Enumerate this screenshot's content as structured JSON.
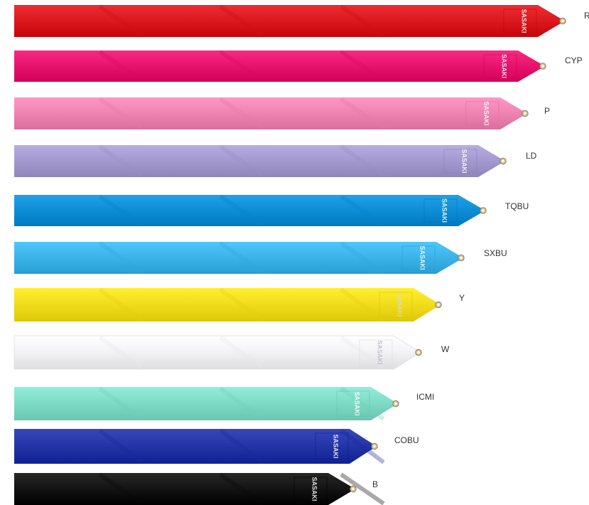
{
  "ribbons": [
    {
      "code": "R",
      "color": "#dc1a1f",
      "logo": "SASAKI"
    },
    {
      "code": "CYP",
      "color": "#e8166f",
      "logo": "SASAKI"
    },
    {
      "code": "P",
      "color": "#f085b3",
      "logo": "SASAKI"
    },
    {
      "code": "LD",
      "color": "#a59bd0",
      "logo": "SASAKI"
    },
    {
      "code": "TQBU",
      "color": "#0f8fd6",
      "logo": "SASAKI"
    },
    {
      "code": "SXBU",
      "color": "#3db5ea",
      "logo": "SASAKI"
    },
    {
      "code": "Y",
      "color": "#f2de1c",
      "logo": "SASAKI"
    },
    {
      "code": "W",
      "color": "#f4f4f6",
      "logo": "SASAKI"
    },
    {
      "code": "ICMI",
      "color": "#7fdcc6",
      "logo": "SASAKI"
    },
    {
      "code": "COBU",
      "color": "#2537a8",
      "logo": "SASAKI"
    },
    {
      "code": "B",
      "color": "#151515",
      "logo": "SASAKI"
    }
  ]
}
